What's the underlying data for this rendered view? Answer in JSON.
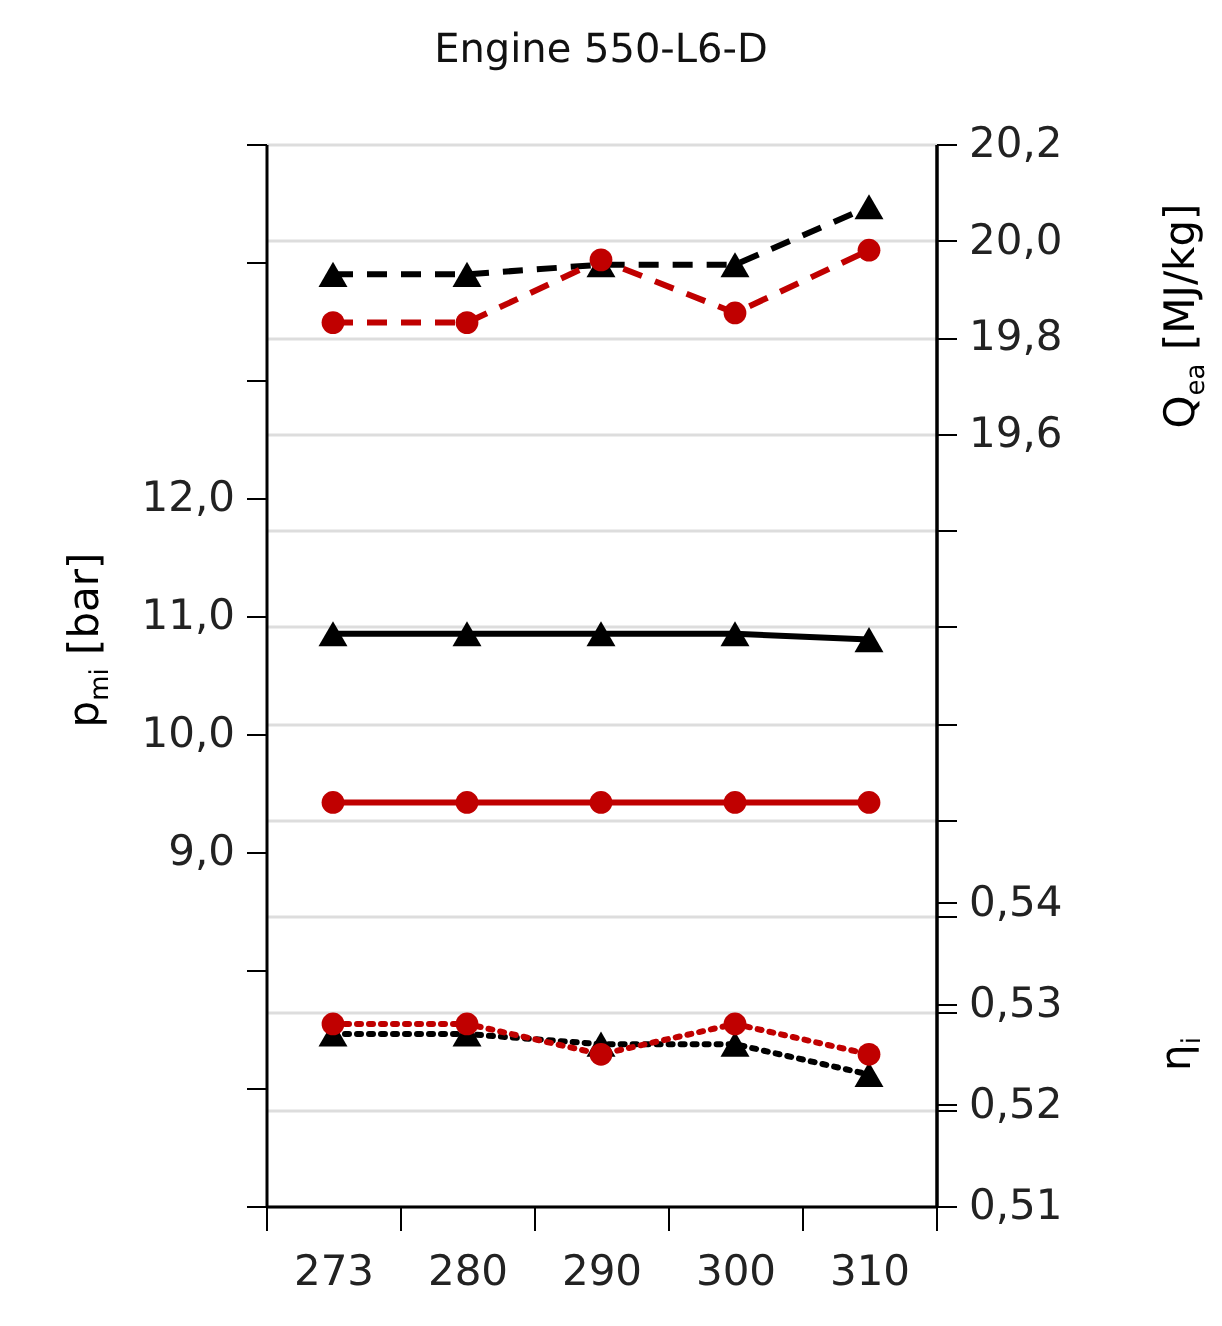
{
  "chart_data": {
    "type": "line",
    "title": "Engine 550-L6-D",
    "categories": [
      "273",
      "280",
      "290",
      "300",
      "310"
    ],
    "ylabel": "p$_{mi}$ [bar]",
    "y2label": "Q$_{ea}$ [MJ/kg]",
    "y3label": "η$_{i}$",
    "ylim": [
      6,
      15
    ],
    "yticks": [
      {
        "value": 6,
        "label": null
      },
      {
        "value": 7,
        "label": null
      },
      {
        "value": 8,
        "label": null
      },
      {
        "value": 9,
        "label": "9,0"
      },
      {
        "value": 10,
        "label": "10,0"
      },
      {
        "value": 11,
        "label": "11,0"
      },
      {
        "value": 12,
        "label": "12,0"
      },
      {
        "value": 13,
        "label": null
      },
      {
        "value": 14,
        "label": null
      },
      {
        "value": 15,
        "label": null
      }
    ],
    "y2lim": [
      18.0,
      20.2
    ],
    "y2ticks": [
      {
        "value": 18.0,
        "label": null
      },
      {
        "value": 18.2,
        "label": null
      },
      {
        "value": 18.4,
        "label": null
      },
      {
        "value": 18.6,
        "label": null
      },
      {
        "value": 18.8,
        "label": null
      },
      {
        "value": 19.0,
        "label": null
      },
      {
        "value": 19.2,
        "label": null
      },
      {
        "value": 19.4,
        "label": null
      },
      {
        "value": 19.6,
        "label": "19,6"
      },
      {
        "value": 19.8,
        "label": "19,8"
      },
      {
        "value": 20.0,
        "label": "20,0"
      },
      {
        "value": 20.2,
        "label": "20,2"
      }
    ],
    "y3lim": [
      0.51,
      0.615
    ],
    "y3ticks": [
      {
        "value": 0.51,
        "label": "0,51"
      },
      {
        "value": 0.52,
        "label": "0,52"
      },
      {
        "value": 0.53,
        "label": "0,53"
      },
      {
        "value": 0.54,
        "label": "0,54"
      }
    ],
    "grid": "y",
    "series": [
      {
        "color": "#000000",
        "axis": "y2",
        "marker": "triangle",
        "line_style": "dashed",
        "values": [
          19.93,
          19.93,
          19.95,
          19.95,
          20.07
        ]
      },
      {
        "color": "#c00000",
        "axis": "y2",
        "marker": "circle",
        "line_style": "dashed",
        "values": [
          19.83,
          19.83,
          19.96,
          19.85,
          19.98
        ]
      },
      {
        "color": "#000000",
        "axis": "y",
        "marker": "triangle",
        "line_style": "solid",
        "values": [
          10.85,
          10.85,
          10.85,
          10.85,
          10.8
        ]
      },
      {
        "color": "#c00000",
        "axis": "y",
        "marker": "circle",
        "line_style": "solid",
        "values": [
          9.42,
          9.42,
          9.42,
          9.42,
          9.42
        ]
      },
      {
        "color": "#000000",
        "axis": "y3",
        "marker": "triangle",
        "line_style": "dotted",
        "values": [
          0.527,
          0.527,
          0.526,
          0.526,
          0.523
        ]
      },
      {
        "color": "#c00000",
        "axis": "y3",
        "marker": "circle",
        "line_style": "dotted",
        "values": [
          0.528,
          0.528,
          0.525,
          0.528,
          0.525
        ]
      }
    ]
  }
}
